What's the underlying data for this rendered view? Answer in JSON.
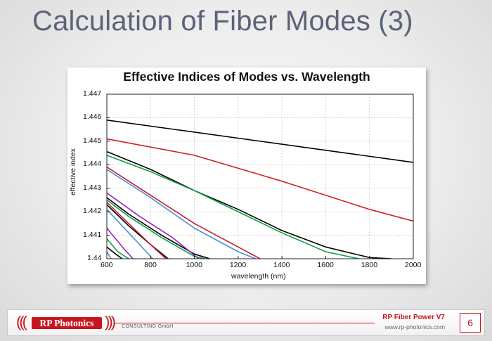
{
  "slide": {
    "title": "Calculation of Fiber Modes (3)"
  },
  "footer": {
    "logo": "RP Photonics",
    "company": "CONSULTING GmbH",
    "product": "RP Fiber Power V7",
    "website": "www.rp-photonics.com",
    "page": "6",
    "accent_color": "#c8161d"
  },
  "chart_data": {
    "type": "line",
    "title": "Effective Indices of Modes vs. Wavelength",
    "xlabel": "wavelength (nm)",
    "ylabel": "effective index",
    "xlim": [
      600,
      2000
    ],
    "ylim": [
      1.44,
      1.447
    ],
    "xticks": [
      "600",
      "800",
      "1000",
      "1200",
      "1400",
      "1600",
      "1800",
      "2000"
    ],
    "yticks": [
      "1.44",
      "1.441",
      "1.442",
      "1.443",
      "1.444",
      "1.445",
      "1.446",
      "1.447"
    ],
    "grid": true,
    "series": [
      {
        "color": "#000000",
        "x": [
          600,
          2000
        ],
        "y": [
          1.4459,
          1.4441
        ]
      },
      {
        "color": "#d22020",
        "x": [
          600,
          1000,
          1400,
          1800,
          2000
        ],
        "y": [
          1.4451,
          1.4444,
          1.4433,
          1.4421,
          1.4416
        ]
      },
      {
        "color": "#000000",
        "x": [
          600,
          800,
          1000,
          1200,
          1400,
          1600,
          1800,
          1900
        ],
        "y": [
          1.44456,
          1.4438,
          1.4429,
          1.4421,
          1.4412,
          1.4405,
          1.44005,
          1.44
        ]
      },
      {
        "color": "#10a040",
        "x": [
          600,
          800,
          1000,
          1200,
          1400,
          1600,
          1800
        ],
        "y": [
          1.4444,
          1.4437,
          1.4429,
          1.442,
          1.4411,
          1.4403,
          1.4399
        ]
      },
      {
        "color": "#c02030",
        "x": [
          600,
          800,
          1000,
          1200,
          1300
        ],
        "y": [
          1.4439,
          1.4427,
          1.4415,
          1.4405,
          1.44
        ]
      },
      {
        "color": "#4a8fd0",
        "x": [
          600,
          800,
          1000,
          1200,
          1280
        ],
        "y": [
          1.4438,
          1.4426,
          1.4413,
          1.4403,
          1.44
        ]
      },
      {
        "color": "#000000",
        "x": [
          600,
          700,
          850,
          1000,
          1070
        ],
        "y": [
          1.4426,
          1.4419,
          1.441,
          1.4402,
          1.44
        ]
      },
      {
        "color": "#10a040",
        "x": [
          600,
          700,
          850,
          1000,
          1050
        ],
        "y": [
          1.4425,
          1.4418,
          1.4409,
          1.4401,
          1.44
        ]
      },
      {
        "color": "#a020c0",
        "x": [
          600,
          750,
          900,
          1020
        ],
        "y": [
          1.4428,
          1.4418,
          1.4409,
          1.44
        ]
      },
      {
        "color": "#000000",
        "x": [
          600,
          700,
          800,
          880
        ],
        "y": [
          1.4423,
          1.4414,
          1.4406,
          1.44
        ]
      },
      {
        "color": "#c02030",
        "x": [
          600,
          700,
          800,
          870
        ],
        "y": [
          1.4424,
          1.4415,
          1.4406,
          1.44
        ]
      },
      {
        "color": "#4a8fd0",
        "x": [
          600,
          700,
          780,
          810
        ],
        "y": [
          1.4421,
          1.4411,
          1.4403,
          1.44
        ]
      },
      {
        "color": "#a020c0",
        "x": [
          600,
          680,
          720
        ],
        "y": [
          1.4413,
          1.4404,
          1.44
        ]
      },
      {
        "color": "#10a040",
        "x": [
          600,
          650,
          700
        ],
        "y": [
          1.44085,
          1.4403,
          1.44
        ]
      },
      {
        "color": "#000000",
        "x": [
          600,
          640,
          670
        ],
        "y": [
          1.4405,
          1.4402,
          1.44
        ]
      },
      {
        "color": "#4a8fd0",
        "x": [
          600,
          620
        ],
        "y": [
          1.4403,
          1.44
        ]
      }
    ]
  }
}
